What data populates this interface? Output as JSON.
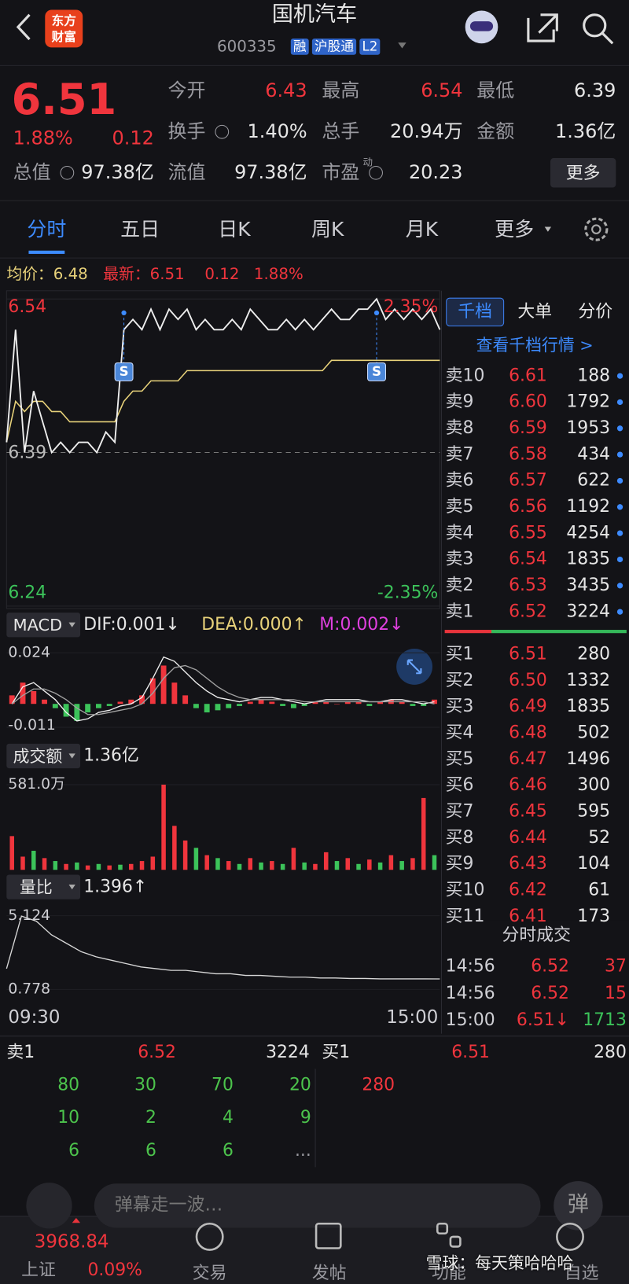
{
  "header": {
    "logo": [
      "东方",
      "财富"
    ],
    "title": "国机汽车",
    "code": "600335",
    "tags": [
      "融",
      "沪股通",
      "L2"
    ]
  },
  "quote": {
    "price": "6.51",
    "change_pct": "1.88%",
    "change": "0.12",
    "market_cap_label": "总值",
    "market_cap": "97.38亿",
    "fields": [
      {
        "label": "今开",
        "value": "6.43",
        "color": "up"
      },
      {
        "label": "最高",
        "value": "6.54",
        "color": "up"
      },
      {
        "label": "最低",
        "value": "6.39",
        "color": "flat"
      },
      {
        "label": "换手",
        "value": "1.40%",
        "color": "flat",
        "info": true
      },
      {
        "label": "总手",
        "value": "20.94万",
        "color": "flat"
      },
      {
        "label": "金额",
        "value": "1.36亿",
        "color": "flat"
      },
      {
        "label": "流值",
        "value": "97.38亿",
        "color": "flat"
      },
      {
        "label": "市盈",
        "value": "20.23",
        "color": "flat",
        "info": true,
        "superscript": "动"
      }
    ],
    "more": "更多"
  },
  "tabs": {
    "items": [
      "分时",
      "五日",
      "日K",
      "周K",
      "月K",
      "更多"
    ],
    "active": 0
  },
  "summary": {
    "avg": "均价：6.48",
    "latest": "最新：6.51",
    "change": "0.12",
    "pct": "1.88%"
  },
  "intraday": {
    "ylim": [
      6.24,
      6.54
    ],
    "yticks": [
      6.54,
      6.39,
      6.24
    ],
    "pct_top": "2.35%",
    "pct_bottom": "-2.35%",
    "price": [
      6.4,
      6.51,
      6.39,
      6.45,
      6.42,
      6.39,
      6.4,
      6.39,
      6.4,
      6.4,
      6.39,
      6.41,
      6.4,
      6.51,
      6.52,
      6.51,
      6.53,
      6.51,
      6.53,
      6.52,
      6.53,
      6.51,
      6.52,
      6.51,
      6.51,
      6.52,
      6.51,
      6.53,
      6.52,
      6.51,
      6.51,
      6.52,
      6.51,
      6.52,
      6.51,
      6.52,
      6.53,
      6.52,
      6.52,
      6.53,
      6.53,
      6.54,
      6.52,
      6.53,
      6.52,
      6.53,
      6.52,
      6.53,
      6.51
    ],
    "avg": [
      6.4,
      6.44,
      6.43,
      6.44,
      6.44,
      6.43,
      6.43,
      6.42,
      6.42,
      6.42,
      6.42,
      6.42,
      6.42,
      6.44,
      6.45,
      6.45,
      6.46,
      6.46,
      6.46,
      6.46,
      6.47,
      6.47,
      6.47,
      6.47,
      6.47,
      6.47,
      6.47,
      6.47,
      6.47,
      6.47,
      6.47,
      6.47,
      6.47,
      6.47,
      6.47,
      6.47,
      6.48,
      6.48,
      6.48,
      6.48,
      6.48,
      6.48,
      6.48,
      6.48,
      6.48,
      6.48,
      6.48,
      6.48,
      6.48
    ],
    "markers": [
      {
        "label": "S",
        "index": 13
      },
      {
        "label": "S",
        "index": 41
      }
    ],
    "time_start": "09:30",
    "time_end": "15:00"
  },
  "macd": {
    "name": "MACD",
    "dif": "DIF:0.001↓",
    "dea": "DEA:0.000↑",
    "m": "M:0.002↓",
    "ylim": [
      -0.011,
      0.024
    ],
    "yticks": [
      0.024,
      -0.011
    ],
    "hist": [
      0.004,
      0.01,
      0.006,
      0.002,
      -0.002,
      -0.006,
      -0.008,
      -0.004,
      -0.002,
      -0.001,
      0.001,
      0.002,
      0.004,
      0.012,
      0.018,
      0.01,
      0.004,
      -0.002,
      -0.004,
      -0.003,
      -0.002,
      -0.001,
      0.001,
      0.002,
      0.001,
      -0.001,
      -0.002,
      -0.001,
      0.001,
      0.001,
      0.0,
      0.001,
      0.001,
      -0.001,
      0.001,
      0.002,
      0.001,
      -0.001,
      -0.001,
      0.002
    ],
    "dif_line": [
      0.0,
      0.008,
      0.01,
      0.006,
      0.002,
      -0.004,
      -0.008,
      -0.007,
      -0.004,
      -0.003,
      -0.001,
      0.0,
      0.003,
      0.012,
      0.022,
      0.02,
      0.015,
      0.01,
      0.006,
      0.003,
      0.002,
      0.001,
      0.002,
      0.003,
      0.003,
      0.002,
      0.001,
      0.0,
      0.001,
      0.002,
      0.002,
      0.002,
      0.002,
      0.001,
      0.001,
      0.002,
      0.002,
      0.001,
      0.0,
      0.001
    ],
    "dea_line": [
      0.0,
      0.004,
      0.007,
      0.007,
      0.005,
      0.002,
      -0.002,
      -0.005,
      -0.005,
      -0.004,
      -0.003,
      -0.002,
      0.0,
      0.005,
      0.012,
      0.017,
      0.018,
      0.016,
      0.012,
      0.008,
      0.005,
      0.003,
      0.002,
      0.002,
      0.002,
      0.002,
      0.002,
      0.001,
      0.001,
      0.001,
      0.001,
      0.001,
      0.001,
      0.001,
      0.001,
      0.001,
      0.001,
      0.001,
      0.001,
      0.0
    ]
  },
  "volume": {
    "name": "成交额",
    "total": "1.36亿",
    "ylim": [
      0,
      581
    ],
    "yticks": [
      {
        "value": 581,
        "label": "581.0万"
      }
    ],
    "values": [
      230,
      90,
      130,
      80,
      60,
      40,
      50,
      30,
      40,
      30,
      35,
      40,
      60,
      90,
      581,
      300,
      200,
      150,
      100,
      80,
      60,
      40,
      80,
      50,
      60,
      40,
      150,
      50,
      40,
      120,
      60,
      80,
      40,
      70,
      50,
      100,
      60,
      80,
      490,
      100
    ],
    "colors": [
      "red",
      "red",
      "green",
      "red",
      "green",
      "red",
      "green",
      "red",
      "green",
      "red",
      "green",
      "red",
      "red",
      "red",
      "red",
      "red",
      "red",
      "green",
      "red",
      "green",
      "red",
      "green",
      "red",
      "green",
      "red",
      "green",
      "red",
      "green",
      "red",
      "red",
      "green",
      "red",
      "green",
      "red",
      "green",
      "red",
      "green",
      "red",
      "red",
      "green"
    ]
  },
  "ratio": {
    "name": "量比",
    "value": "1.396↑",
    "ylim": [
      0.778,
      5.124
    ],
    "yticks": [
      5.124,
      0.778
    ],
    "values": [
      2.0,
      5.1,
      4.8,
      4.0,
      3.5,
      3.0,
      2.7,
      2.5,
      2.3,
      2.1,
      2.0,
      1.9,
      1.9,
      1.8,
      1.7,
      1.7,
      1.6,
      1.6,
      1.55,
      1.5,
      1.5,
      1.45,
      1.45,
      1.42,
      1.42,
      1.4,
      1.4,
      1.4,
      1.4,
      1.396
    ]
  },
  "order_book": {
    "tabs": [
      "千档",
      "大单",
      "分价"
    ],
    "active": 0,
    "link": "查看千档行情 >",
    "asks": [
      {
        "label": "卖10",
        "price": "6.61",
        "volume": "188"
      },
      {
        "label": "卖9",
        "price": "6.60",
        "volume": "1792"
      },
      {
        "label": "卖8",
        "price": "6.59",
        "volume": "1953"
      },
      {
        "label": "卖7",
        "price": "6.58",
        "volume": "434"
      },
      {
        "label": "卖6",
        "price": "6.57",
        "volume": "622"
      },
      {
        "label": "卖5",
        "price": "6.56",
        "volume": "1192"
      },
      {
        "label": "卖4",
        "price": "6.55",
        "volume": "4254"
      },
      {
        "label": "卖3",
        "price": "6.54",
        "volume": "1835"
      },
      {
        "label": "卖2",
        "price": "6.53",
        "volume": "3435"
      },
      {
        "label": "卖1",
        "price": "6.52",
        "volume": "3224"
      }
    ],
    "bids": [
      {
        "label": "买1",
        "price": "6.51",
        "volume": "280"
      },
      {
        "label": "买2",
        "price": "6.50",
        "volume": "1332"
      },
      {
        "label": "买3",
        "price": "6.49",
        "volume": "1835"
      },
      {
        "label": "买4",
        "price": "6.48",
        "volume": "502"
      },
      {
        "label": "买5",
        "price": "6.47",
        "volume": "1496"
      },
      {
        "label": "买6",
        "price": "6.46",
        "volume": "300"
      },
      {
        "label": "买7",
        "price": "6.45",
        "volume": "595"
      },
      {
        "label": "买8",
        "price": "6.44",
        "volume": "52"
      },
      {
        "label": "买9",
        "price": "6.43",
        "volume": "104"
      },
      {
        "label": "买10",
        "price": "6.42",
        "volume": "61"
      },
      {
        "label": "买11",
        "price": "6.41",
        "volume": "173"
      }
    ]
  },
  "trades": {
    "title": "分时成交",
    "rows": [
      {
        "time": "14:56",
        "price": "6.52",
        "volume": "37",
        "color": "red"
      },
      {
        "time": "14:56",
        "price": "6.52",
        "volume": "15",
        "color": "red"
      },
      {
        "time": "15:00",
        "price": "6.51↓",
        "volume": "1713",
        "color": "green"
      }
    ]
  },
  "queue": {
    "ask_label": "卖1",
    "ask_price": "6.52",
    "ask_volume": "3224",
    "ask_orders": [
      "80",
      "30",
      "70",
      "20",
      "10",
      "2",
      "4",
      "9",
      "6",
      "6",
      "6",
      "..."
    ],
    "bid_label": "买1",
    "bid_price": "6.51",
    "bid_volume": "280",
    "bid_orders": [
      "280"
    ]
  },
  "comment": {
    "placeholder": "弹幕走一波…",
    "button": "弹"
  },
  "nav": {
    "index_name": "上证",
    "index_value": "3968.84",
    "index_pct": "0.09%",
    "items": [
      "交易",
      "发帖",
      "功能",
      "自选"
    ]
  },
  "watermark": "雪球：每天策哈哈哈"
}
